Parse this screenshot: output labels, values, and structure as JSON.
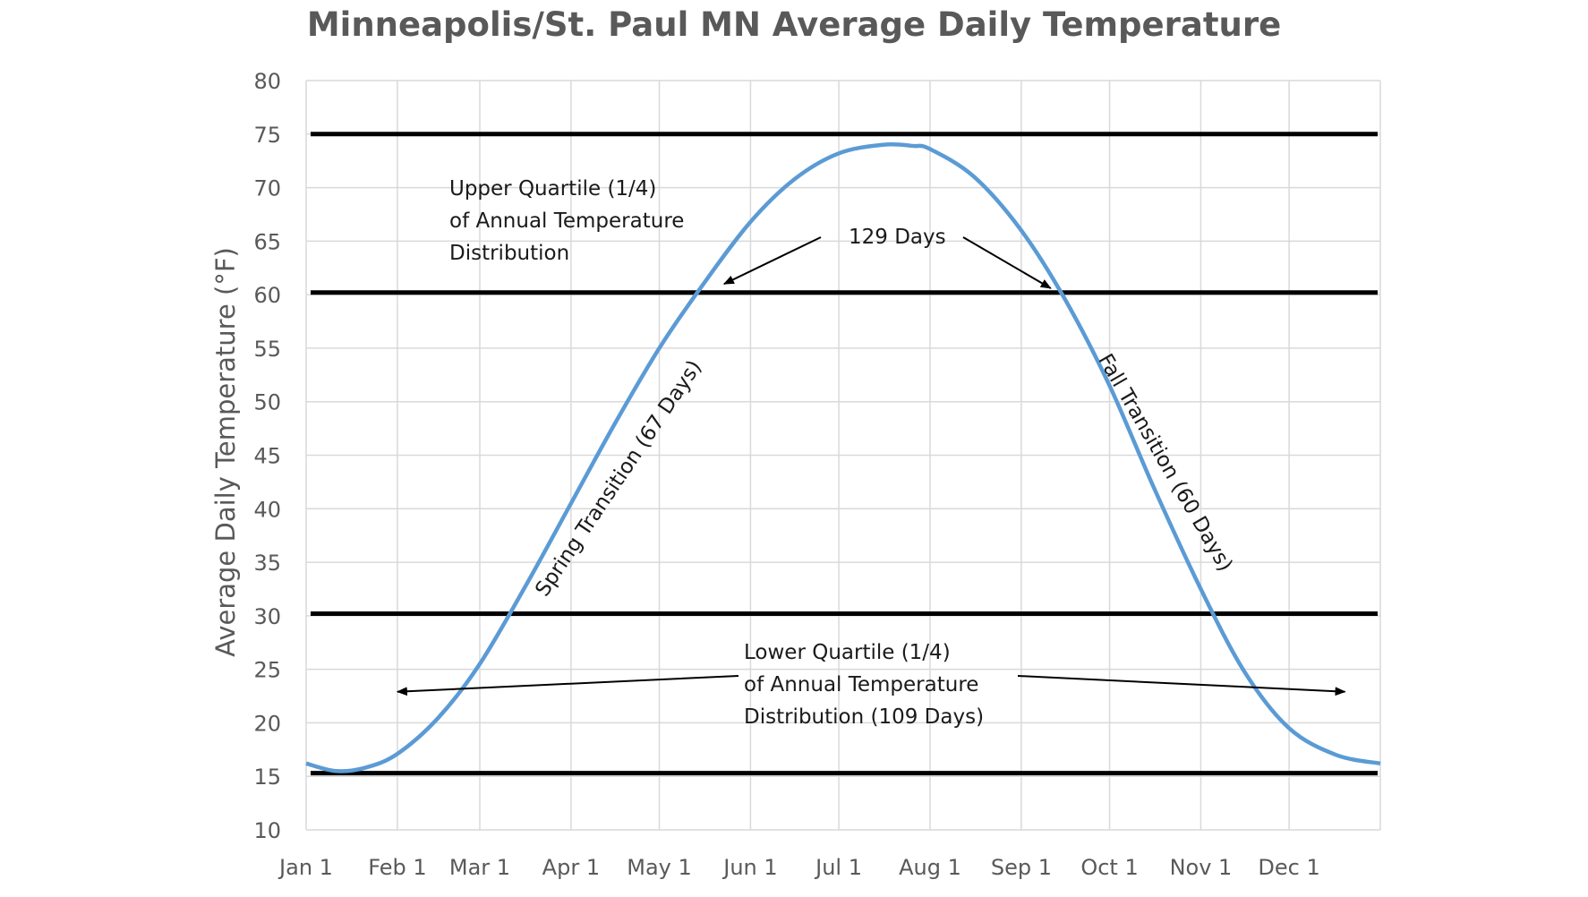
{
  "chart_data": {
    "type": "line",
    "title": "Minneapolis/St. Paul MN Average Daily Temperature",
    "xlabel": "",
    "ylabel": "Average Daily Temperature (°F)",
    "ylim": [
      10,
      80
    ],
    "y_ticks": [
      "10",
      "15",
      "20",
      "25",
      "30",
      "35",
      "40",
      "45",
      "50",
      "55",
      "60",
      "65",
      "70",
      "75",
      "80"
    ],
    "x_range_days": [
      0,
      365
    ],
    "x_ticks": [
      {
        "label": "Jan 1",
        "day": 0
      },
      {
        "label": "Feb 1",
        "day": 31
      },
      {
        "label": "Mar 1",
        "day": 59
      },
      {
        "label": "Apr 1",
        "day": 90
      },
      {
        "label": "May 1",
        "day": 120
      },
      {
        "label": "Jun 1",
        "day": 151
      },
      {
        "label": "Jul 1",
        "day": 181
      },
      {
        "label": "Aug 1",
        "day": 212
      },
      {
        "label": "Sep 1",
        "day": 243
      },
      {
        "label": "Oct 1",
        "day": 273
      },
      {
        "label": "Nov 1",
        "day": 304
      },
      {
        "label": "Dec 1",
        "day": 334
      }
    ],
    "grid": true,
    "series": [
      {
        "name": "Average Daily Temperature",
        "color": "#5b9bd5",
        "x": [
          0,
          10,
          20,
          31,
          45,
          59,
          75,
          90,
          105,
          120,
          135,
          151,
          166,
          181,
          196,
          206,
          212,
          227,
          243,
          258,
          273,
          288,
          304,
          319,
          334,
          350,
          365
        ],
        "y": [
          16.2,
          15.5,
          15.8,
          17.1,
          20.5,
          25.5,
          33.0,
          40.5,
          48.0,
          55.0,
          61.0,
          66.8,
          70.8,
          73.2,
          74.0,
          73.9,
          73.6,
          71.0,
          66.0,
          59.5,
          51.5,
          42.0,
          32.5,
          24.7,
          19.5,
          17.0,
          16.2
        ]
      }
    ],
    "reference_lines": [
      {
        "y": 75,
        "color": "#000000"
      },
      {
        "y": 60.2,
        "color": "#000000"
      },
      {
        "y": 30.2,
        "color": "#000000"
      },
      {
        "y": 15.3,
        "color": "#000000"
      }
    ],
    "annotations": {
      "upper_quartile": [
        "Upper Quartile (1/4)",
        "of Annual Temperature",
        "Distribution"
      ],
      "days_129": "129  Days",
      "spring_transition": "Spring Transition (67 Days)",
      "fall_transition": "Fall Transition (60 Days)",
      "lower_quartile": [
        "Lower Quartile (1/4)",
        "of Annual Temperature",
        "Distribution (109 Days)"
      ]
    },
    "annotation_targets": {
      "days_129_left": {
        "day": 142,
        "temp": 61.0
      },
      "days_129_right": {
        "day": 253,
        "temp": 60.6
      },
      "lower_left": {
        "day": 31,
        "temp": 22.9
      },
      "lower_right": {
        "day": 353,
        "temp": 22.9
      },
      "spring_anchor": {
        "day": 108,
        "temp": 42.5
      },
      "fall_anchor": {
        "day": 290,
        "temp": 44.0
      }
    }
  }
}
